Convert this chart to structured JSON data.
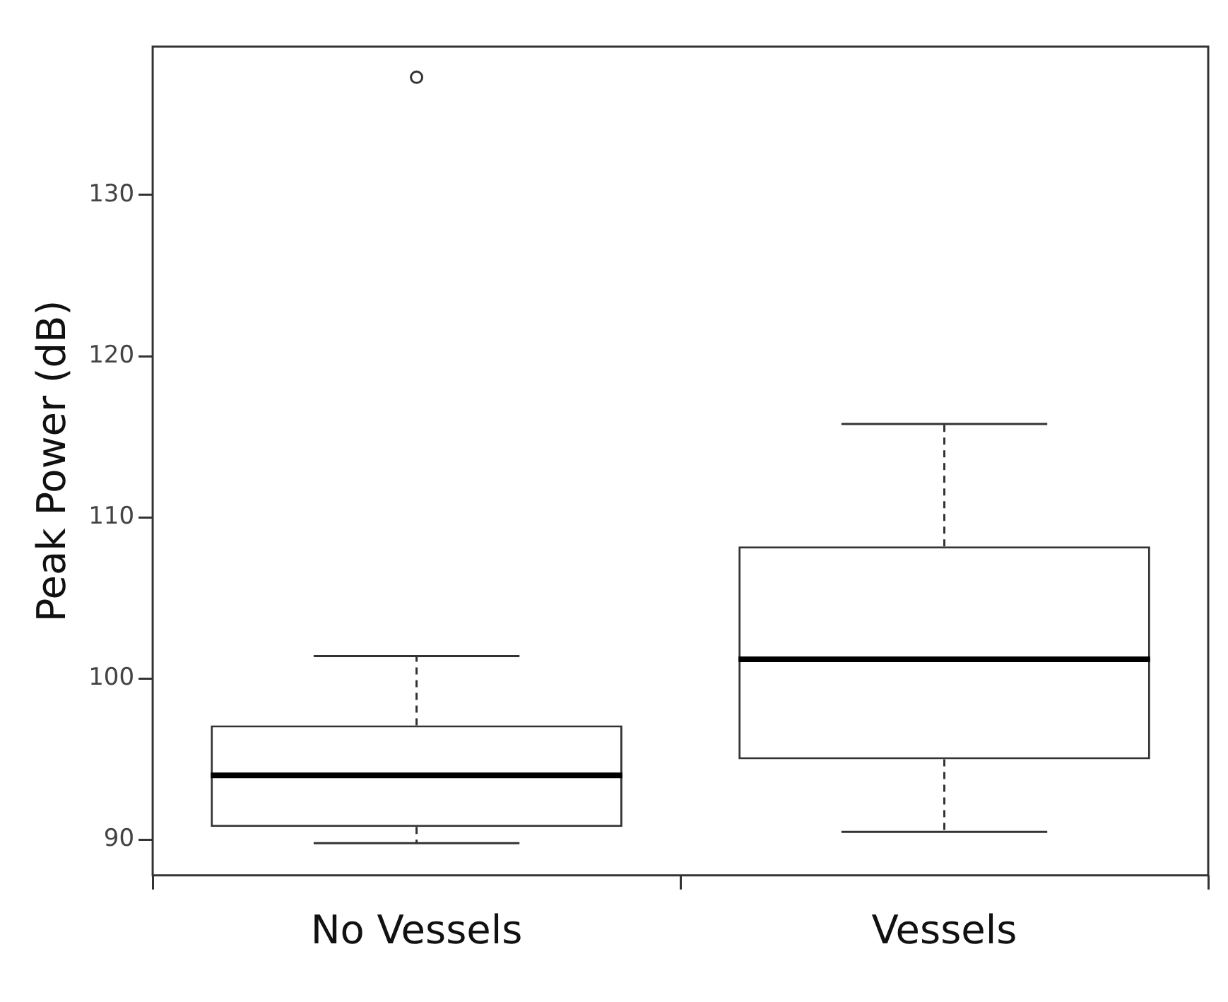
{
  "chart_data": {
    "type": "box",
    "ylabel": "Peak Power (dB)",
    "categories": [
      "No Vessels",
      "Vessels"
    ],
    "boxes": [
      {
        "low": 89.8,
        "q1": 90.8,
        "median": 94.0,
        "q3": 97.1,
        "high": 101.4,
        "outliers": [
          137.3
        ]
      },
      {
        "low": 90.5,
        "q1": 95.0,
        "median": 101.2,
        "q3": 108.2,
        "high": 115.8
      }
    ],
    "ylim": [
      87.8,
      139.2
    ],
    "yticks": [
      90,
      100,
      110,
      120,
      130
    ]
  }
}
